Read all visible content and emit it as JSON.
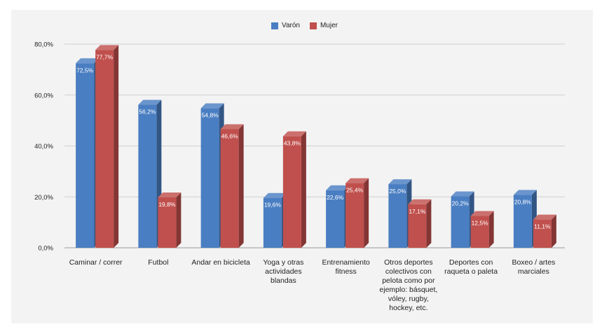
{
  "chart_data": {
    "type": "bar",
    "categories": [
      "Caminar / correr",
      "Futbol",
      "Andar en bicicleta",
      "Yoga y otras actividades blandas",
      "Entrenamiento fitness",
      "Otros deportes colectivos con pelota como por ejemplo: básquet, vóley, rugby, hockey, etc.",
      "Deportes con raqueta o paleta",
      "Boxeo / artes marciales"
    ],
    "series": [
      {
        "name": "Varón",
        "values": [
          72.5,
          56.2,
          54.8,
          19.6,
          22.6,
          25.0,
          20.2,
          20.8
        ],
        "labels": [
          "72,5%",
          "56,2%",
          "54,8%",
          "19,6%",
          "22,6%",
          "25,0%",
          "20,2%",
          "20,8%"
        ],
        "color": "#4a7ec2"
      },
      {
        "name": "Mujer",
        "values": [
          77.7,
          19.8,
          46.6,
          43.8,
          25.4,
          17.1,
          12.5,
          11.1
        ],
        "labels": [
          "77,7%",
          "19,8%",
          "46,6%",
          "43,8%",
          "25,4%",
          "17,1%",
          "12,5%",
          "11,1%"
        ],
        "color": "#c0504d"
      }
    ],
    "yticks": [
      "0,0%",
      "20,0%",
      "40,0%",
      "60,0%",
      "80,0%"
    ],
    "ylim": [
      0,
      80
    ],
    "grid": true,
    "legend_position": "top-center",
    "style": "3d-bars"
  }
}
